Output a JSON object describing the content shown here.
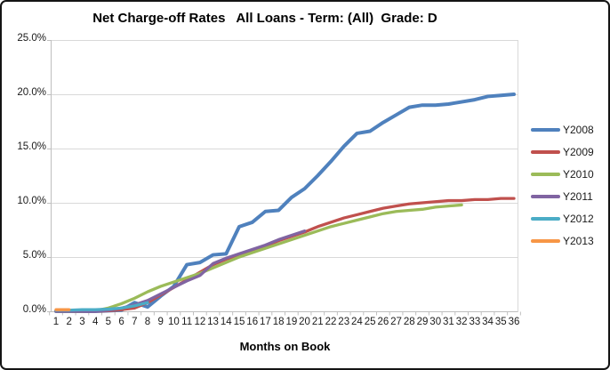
{
  "window": {
    "title": "Net Charge-off Rates   All Loans - Term: (All)  Grade: D"
  },
  "chart_data": {
    "type": "line",
    "title": "Net Charge-off Rates   All Loans - Term: (All)  Grade: D",
    "xlabel": "Months on Book",
    "ylabel": "",
    "ylim": [
      0,
      25
    ],
    "grid": "horizontal",
    "legend_position": "right",
    "axis_color": "#bfbfbf",
    "gridline_color": "#d9d9d9",
    "x": [
      1,
      2,
      3,
      4,
      5,
      6,
      7,
      8,
      9,
      10,
      11,
      12,
      13,
      14,
      15,
      16,
      17,
      18,
      19,
      20,
      21,
      22,
      23,
      24,
      25,
      26,
      27,
      28,
      29,
      30,
      31,
      32,
      33,
      34,
      35,
      36
    ],
    "x_tick_labels": [
      "1",
      "2",
      "3",
      "4",
      "5",
      "6",
      "7",
      "8",
      "9",
      "10",
      "11",
      "12",
      "13",
      "14",
      "15",
      "16",
      "17",
      "18",
      "19",
      "20",
      "21",
      "22",
      "23",
      "24",
      "25",
      "26",
      "27",
      "28",
      "29",
      "30",
      "31",
      "32",
      "33",
      "34",
      "35",
      "36"
    ],
    "y_ticks": [
      0,
      5,
      10,
      15,
      20,
      25
    ],
    "y_tick_labels": [
      "0.0%",
      "5.0%",
      "10.0%",
      "15.0%",
      "20.0%",
      "25.0%"
    ],
    "series": [
      {
        "name": "Y2008",
        "color": "#4F81BD",
        "values": [
          0,
          0,
          0,
          0,
          0.05,
          0.1,
          0.8,
          0.4,
          1.4,
          2.3,
          4.3,
          4.5,
          5.2,
          5.3,
          7.8,
          8.2,
          9.2,
          9.3,
          10.5,
          11.3,
          12.5,
          13.8,
          15.2,
          16.4,
          16.6,
          17.4,
          18.1,
          18.8,
          19.0,
          19.0,
          19.1,
          19.3,
          19.5,
          19.8,
          19.9,
          20.0
        ]
      },
      {
        "name": "Y2009",
        "color": "#C0504D",
        "values": [
          0,
          0,
          0,
          0,
          0.05,
          0.15,
          0.3,
          0.8,
          1.5,
          2.2,
          2.9,
          3.6,
          4.3,
          4.8,
          5.2,
          5.6,
          6.0,
          6.5,
          6.9,
          7.3,
          7.8,
          8.2,
          8.6,
          8.9,
          9.2,
          9.5,
          9.7,
          9.9,
          10.0,
          10.1,
          10.2,
          10.2,
          10.3,
          10.3,
          10.4,
          10.4
        ]
      },
      {
        "name": "Y2010",
        "color": "#9BBB59",
        "values": [
          0,
          0,
          0,
          0.05,
          0.3,
          0.7,
          1.2,
          1.8,
          2.3,
          2.7,
          3.1,
          3.5,
          4.0,
          4.5,
          5.0,
          5.4,
          5.8,
          6.2,
          6.6,
          7.0,
          7.4,
          7.8,
          8.1,
          8.4,
          8.7,
          9.0,
          9.2,
          9.3,
          9.4,
          9.6,
          9.7,
          9.8
        ]
      },
      {
        "name": "Y2011",
        "color": "#8064A2",
        "values": [
          0,
          0,
          0,
          0,
          0.1,
          0.3,
          0.6,
          1.0,
          1.6,
          2.2,
          2.8,
          3.3,
          4.4,
          4.9,
          5.3,
          5.7,
          6.1,
          6.6,
          7.0,
          7.4
        ]
      },
      {
        "name": "Y2012",
        "color": "#4BACC6",
        "values": [
          0.1,
          0.1,
          0.15,
          0.15,
          0.2,
          0.3,
          0.5,
          0.8
        ]
      },
      {
        "name": "Y2013",
        "color": "#F79646",
        "values": [
          0.15,
          0.15
        ]
      }
    ]
  }
}
